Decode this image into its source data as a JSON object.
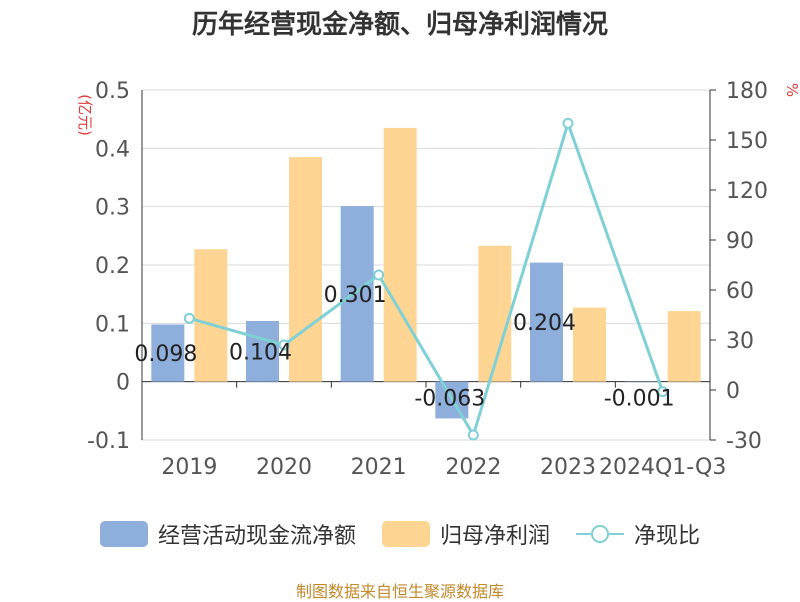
{
  "title": "历年经营现金净额、归母净利润情况",
  "source": "制图数据来自恒生聚源数据库",
  "colors": {
    "cash": "#8eaedc",
    "profit": "#ffd594",
    "ratio": "#7fd1d6",
    "unit": "#e23a3a",
    "source": "#c28a2b"
  },
  "chart_data": {
    "type": "bar",
    "categories": [
      "2019",
      "2020",
      "2021",
      "2022",
      "2023",
      "2024Q1-Q3"
    ],
    "left_axis": {
      "unit": "(亿元)",
      "ylim": [
        -0.1,
        0.5
      ],
      "ticks": [
        "-0.1",
        "0",
        "0.1",
        "0.2",
        "0.3",
        "0.4",
        "0.5"
      ]
    },
    "right_axis": {
      "unit": "%",
      "ylim": [
        -30,
        180
      ],
      "ticks": [
        "-30",
        "0",
        "30",
        "60",
        "90",
        "120",
        "150",
        "180"
      ]
    },
    "grid": true,
    "legend_position": "bottom",
    "series": [
      {
        "name": "经营活动现金流净额",
        "kind": "bar",
        "axis": "left",
        "values": [
          0.098,
          0.104,
          0.301,
          -0.063,
          0.204,
          -0.001
        ],
        "labels": [
          "0.098",
          "0.104",
          "0.301",
          "-0.063",
          "0.204",
          "-0.001"
        ]
      },
      {
        "name": "归母净利润",
        "kind": "bar",
        "axis": "left",
        "values": [
          0.227,
          0.385,
          0.435,
          0.233,
          0.127,
          0.121
        ]
      },
      {
        "name": "净现比",
        "kind": "line",
        "axis": "right",
        "values": [
          43,
          27,
          69,
          -27,
          160,
          -1
        ]
      }
    ]
  }
}
